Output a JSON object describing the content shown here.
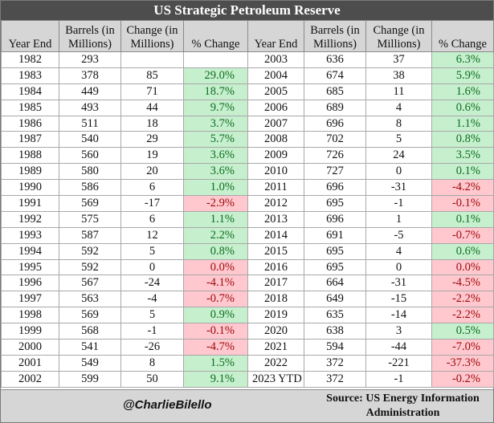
{
  "title": "US Strategic Petroleum Reserve",
  "headers": [
    "Year End",
    "Barrels (in Millions)",
    "Change (in Millions)",
    "% Change",
    "Year End",
    "Barrels (in Millions)",
    "Change (in Millions)",
    "% Change"
  ],
  "rows": [
    {
      "y1": "1982",
      "b1": "293",
      "c1": "",
      "p1": "",
      "s1": "none",
      "y2": "2003",
      "b2": "636",
      "c2": "37",
      "p2": "6.3%",
      "s2": "pos"
    },
    {
      "y1": "1983",
      "b1": "378",
      "c1": "85",
      "p1": "29.0%",
      "s1": "pos",
      "y2": "2004",
      "b2": "674",
      "c2": "38",
      "p2": "5.9%",
      "s2": "pos"
    },
    {
      "y1": "1984",
      "b1": "449",
      "c1": "71",
      "p1": "18.7%",
      "s1": "pos",
      "y2": "2005",
      "b2": "685",
      "c2": "11",
      "p2": "1.6%",
      "s2": "pos"
    },
    {
      "y1": "1985",
      "b1": "493",
      "c1": "44",
      "p1": "9.7%",
      "s1": "pos",
      "y2": "2006",
      "b2": "689",
      "c2": "4",
      "p2": "0.6%",
      "s2": "pos"
    },
    {
      "y1": "1986",
      "b1": "511",
      "c1": "18",
      "p1": "3.7%",
      "s1": "pos",
      "y2": "2007",
      "b2": "696",
      "c2": "8",
      "p2": "1.1%",
      "s2": "pos"
    },
    {
      "y1": "1987",
      "b1": "540",
      "c1": "29",
      "p1": "5.7%",
      "s1": "pos",
      "y2": "2008",
      "b2": "702",
      "c2": "5",
      "p2": "0.8%",
      "s2": "pos"
    },
    {
      "y1": "1988",
      "b1": "560",
      "c1": "19",
      "p1": "3.6%",
      "s1": "pos",
      "y2": "2009",
      "b2": "726",
      "c2": "24",
      "p2": "3.5%",
      "s2": "pos"
    },
    {
      "y1": "1989",
      "b1": "580",
      "c1": "20",
      "p1": "3.6%",
      "s1": "pos",
      "y2": "2010",
      "b2": "727",
      "c2": "0",
      "p2": "0.1%",
      "s2": "pos"
    },
    {
      "y1": "1990",
      "b1": "586",
      "c1": "6",
      "p1": "1.0%",
      "s1": "pos",
      "y2": "2011",
      "b2": "696",
      "c2": "-31",
      "p2": "-4.2%",
      "s2": "neg"
    },
    {
      "y1": "1991",
      "b1": "569",
      "c1": "-17",
      "p1": "-2.9%",
      "s1": "neg",
      "y2": "2012",
      "b2": "695",
      "c2": "-1",
      "p2": "-0.1%",
      "s2": "neg"
    },
    {
      "y1": "1992",
      "b1": "575",
      "c1": "6",
      "p1": "1.1%",
      "s1": "pos",
      "y2": "2013",
      "b2": "696",
      "c2": "1",
      "p2": "0.1%",
      "s2": "pos"
    },
    {
      "y1": "1993",
      "b1": "587",
      "c1": "12",
      "p1": "2.2%",
      "s1": "pos",
      "y2": "2014",
      "b2": "691",
      "c2": "-5",
      "p2": "-0.7%",
      "s2": "neg"
    },
    {
      "y1": "1994",
      "b1": "592",
      "c1": "5",
      "p1": "0.8%",
      "s1": "pos",
      "y2": "2015",
      "b2": "695",
      "c2": "4",
      "p2": "0.6%",
      "s2": "pos"
    },
    {
      "y1": "1995",
      "b1": "592",
      "c1": "0",
      "p1": "0.0%",
      "s1": "neg",
      "y2": "2016",
      "b2": "695",
      "c2": "0",
      "p2": "0.0%",
      "s2": "neg"
    },
    {
      "y1": "1996",
      "b1": "567",
      "c1": "-24",
      "p1": "-4.1%",
      "s1": "neg",
      "y2": "2017",
      "b2": "664",
      "c2": "-31",
      "p2": "-4.5%",
      "s2": "neg"
    },
    {
      "y1": "1997",
      "b1": "563",
      "c1": "-4",
      "p1": "-0.7%",
      "s1": "neg",
      "y2": "2018",
      "b2": "649",
      "c2": "-15",
      "p2": "-2.2%",
      "s2": "neg"
    },
    {
      "y1": "1998",
      "b1": "569",
      "c1": "5",
      "p1": "0.9%",
      "s1": "pos",
      "y2": "2019",
      "b2": "635",
      "c2": "-14",
      "p2": "-2.2%",
      "s2": "neg"
    },
    {
      "y1": "1999",
      "b1": "568",
      "c1": "-1",
      "p1": "-0.1%",
      "s1": "neg",
      "y2": "2020",
      "b2": "638",
      "c2": "3",
      "p2": "0.5%",
      "s2": "pos"
    },
    {
      "y1": "2000",
      "b1": "541",
      "c1": "-26",
      "p1": "-4.7%",
      "s1": "neg",
      "y2": "2021",
      "b2": "594",
      "c2": "-44",
      "p2": "-7.0%",
      "s2": "neg"
    },
    {
      "y1": "2001",
      "b1": "549",
      "c1": "8",
      "p1": "1.5%",
      "s1": "pos",
      "y2": "2022",
      "b2": "372",
      "c2": "-221",
      "p2": "-37.3%",
      "s2": "neg"
    },
    {
      "y1": "2002",
      "b1": "599",
      "c1": "50",
      "p1": "9.1%",
      "s1": "pos",
      "y2": "2023 YTD",
      "b2": "372",
      "c2": "-1",
      "p2": "-0.2%",
      "s2": "neg"
    }
  ],
  "footer": {
    "handle": "@CharlieBilello",
    "source": "Source: US Energy Information Administration"
  },
  "colors": {
    "title_bg": "#4d4d4d",
    "header_bg": "#d6d6d6",
    "positive_bg": "#c6efce",
    "positive_text": "#0c6e1e",
    "negative_bg": "#ffc7ce",
    "negative_text": "#9c0a0a"
  }
}
